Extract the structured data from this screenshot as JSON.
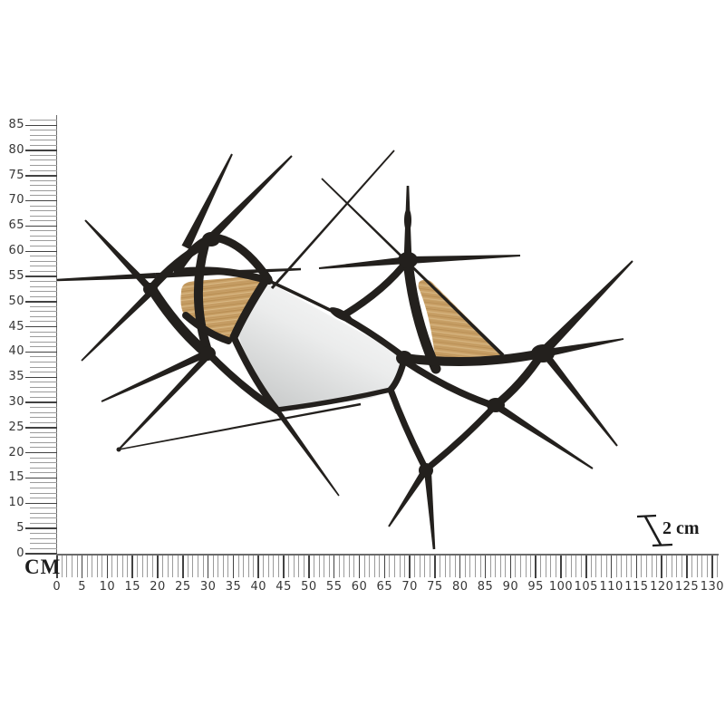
{
  "rulers": {
    "unit_label": "CM",
    "vertical": {
      "min": 0,
      "max_tick": 86,
      "label_step": 5,
      "labels": [
        "0",
        "5",
        "10",
        "15",
        "20",
        "25",
        "30",
        "35",
        "40",
        "45",
        "50",
        "55",
        "60",
        "65",
        "70",
        "75",
        "80",
        "85"
      ]
    },
    "horizontal": {
      "min": 0,
      "max_tick": 131,
      "label_step": 5,
      "labels": [
        "0",
        "5",
        "10",
        "15",
        "20",
        "25",
        "30",
        "35",
        "40",
        "45",
        "50",
        "55",
        "60",
        "65",
        "70",
        "75",
        "80",
        "85",
        "90",
        "95",
        "100",
        "105",
        "110",
        "115",
        "120",
        "125",
        "130"
      ]
    }
  },
  "depth_indicator": {
    "label": "2 cm"
  },
  "artwork": {
    "description": "abstract wall mirror: black metal spiked web with two wood inlay panels and central mirror",
    "colors": {
      "metal": "#23201d",
      "wood": "#c9a168",
      "wood_grain_dark": "#ab8044",
      "wood_grain_light": "#ddc08d",
      "mirror_light": "#fbfbfb",
      "mirror_mid": "#ebecec",
      "mirror_dark": "#c5c7c7"
    }
  },
  "style": {
    "tick_minor": "#9b9b9b",
    "tick_major": "#424242",
    "axis": "#6b6b6b",
    "label_color": "#363636"
  }
}
